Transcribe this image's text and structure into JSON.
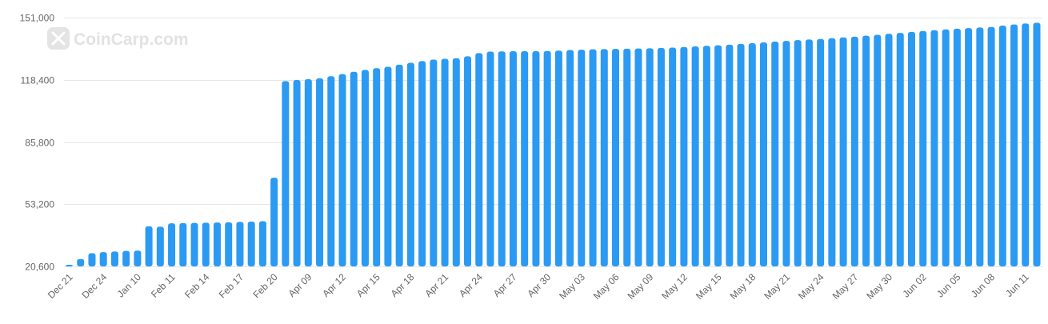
{
  "watermark": {
    "text": "CoinCarp.com"
  },
  "colors": {
    "bar": "#2b9af3",
    "grid": "#e6e6e6",
    "text": "#666666"
  },
  "chart_data": {
    "type": "bar",
    "ylim": [
      20600,
      151000
    ],
    "yticks": [
      "151,000",
      "118,400",
      "85,800",
      "53,200",
      "20,600"
    ],
    "ytick_values": [
      151000,
      118400,
      85800,
      53200,
      20600
    ],
    "xtick_labels": [
      "Dec 21",
      "Dec 24",
      "Jan 10",
      "Feb 11",
      "Feb 14",
      "Feb 17",
      "Feb 20",
      "Apr 09",
      "Apr 12",
      "Apr 15",
      "Apr 18",
      "Apr 21",
      "Apr 24",
      "Apr 27",
      "Apr 30",
      "May 03",
      "May 06",
      "May 09",
      "May 12",
      "May 15",
      "May 18",
      "May 21",
      "May 24",
      "May 27",
      "May 30",
      "Jun 02",
      "Jun 05",
      "Jun 08",
      "Jun 11"
    ],
    "xtick_bar_index": [
      0,
      3,
      6,
      9,
      12,
      15,
      18,
      21,
      24,
      27,
      30,
      33,
      36,
      39,
      42,
      45,
      48,
      51,
      54,
      57,
      60,
      63,
      66,
      69,
      72,
      75,
      78,
      81,
      84
    ],
    "values": [
      21200,
      24500,
      27500,
      28100,
      28400,
      28700,
      28900,
      41600,
      41400,
      43200,
      43300,
      43400,
      43500,
      43600,
      43700,
      43900,
      44100,
      44300,
      67100,
      117700,
      118300,
      118700,
      119200,
      120300,
      121400,
      122600,
      123600,
      124500,
      125200,
      126300,
      127300,
      128200,
      129000,
      129400,
      129700,
      130700,
      132400,
      133200,
      133300,
      133400,
      133400,
      133400,
      133500,
      133700,
      134000,
      134200,
      134400,
      134500,
      134600,
      134700,
      134800,
      134900,
      135100,
      135300,
      135600,
      135900,
      136200,
      136500,
      136800,
      137200,
      137600,
      138000,
      138400,
      138800,
      139200,
      139500,
      139800,
      140200,
      140600,
      141000,
      141500,
      142000,
      142500,
      143000,
      143500,
      144000,
      144400,
      144800,
      145200,
      145500,
      145800,
      146100,
      146800,
      147400,
      147900,
      148300
    ]
  }
}
